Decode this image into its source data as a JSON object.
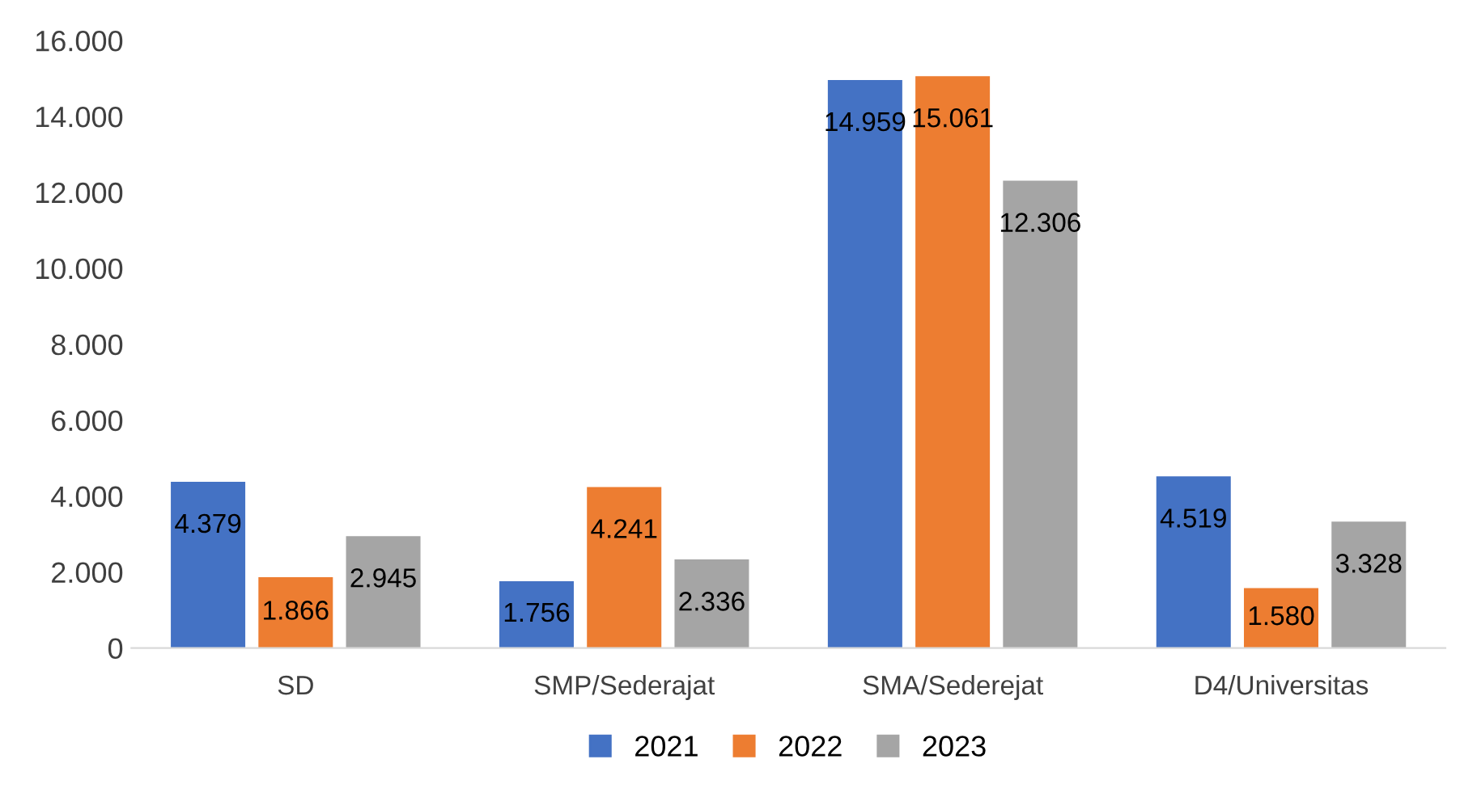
{
  "chart_data": {
    "type": "bar",
    "categories": [
      "SD",
      "SMP/Sederajat",
      "SMA/Sederejat",
      "D4/Universitas"
    ],
    "series": [
      {
        "name": "2021",
        "color": "#4472c4",
        "values": [
          4379,
          1756,
          14959,
          4519
        ],
        "value_labels": [
          "4.379",
          "1.756",
          "14.959",
          "4.519"
        ]
      },
      {
        "name": "2022",
        "color": "#ed7d31",
        "values": [
          1866,
          4241,
          15061,
          1580
        ],
        "value_labels": [
          "1.866",
          "4.241",
          "15.061",
          "1.580"
        ]
      },
      {
        "name": "2023",
        "color": "#a5a5a5",
        "values": [
          2945,
          2336,
          12306,
          3328
        ],
        "value_labels": [
          "2.945",
          "2.336",
          "12.306",
          "3.328"
        ]
      }
    ],
    "ylim": [
      0,
      16000
    ],
    "yticks": [
      {
        "value": 0,
        "label": "0"
      },
      {
        "value": 2000,
        "label": "2.000"
      },
      {
        "value": 4000,
        "label": "4.000"
      },
      {
        "value": 6000,
        "label": "6.000"
      },
      {
        "value": 8000,
        "label": "8.000"
      },
      {
        "value": 10000,
        "label": "10.000"
      },
      {
        "value": 12000,
        "label": "12.000"
      },
      {
        "value": 14000,
        "label": "14.000"
      },
      {
        "value": 16000,
        "label": "16.000"
      }
    ],
    "grid": false,
    "legend": "bottom"
  }
}
